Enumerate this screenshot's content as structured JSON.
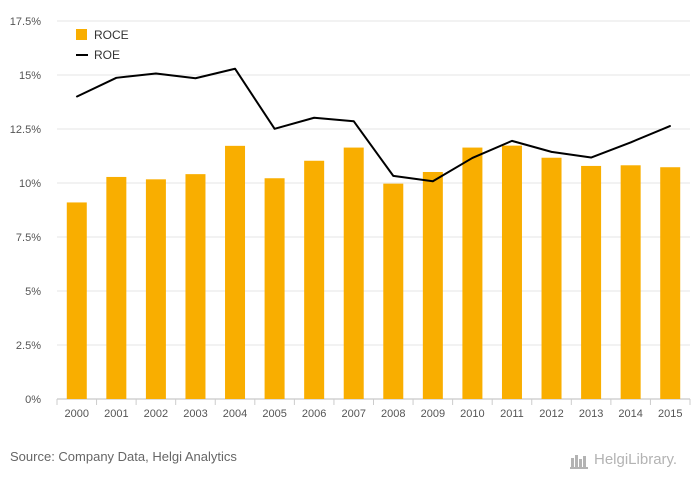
{
  "chart_data": {
    "type": "bar",
    "categories": [
      "2000",
      "2001",
      "2002",
      "2003",
      "2004",
      "2005",
      "2006",
      "2007",
      "2008",
      "2009",
      "2010",
      "2011",
      "2012",
      "2013",
      "2014",
      "2015"
    ],
    "series": [
      {
        "name": "ROCE",
        "type": "bar",
        "values": [
          9.1,
          10.28,
          10.17,
          10.41,
          11.72,
          10.22,
          11.03,
          11.64,
          9.97,
          10.51,
          11.64,
          11.73,
          11.17,
          10.79,
          10.82,
          10.73
        ]
      },
      {
        "name": "ROE",
        "type": "line",
        "values": [
          14.0,
          14.87,
          15.07,
          14.85,
          15.29,
          12.51,
          13.02,
          12.86,
          10.33,
          10.08,
          11.16,
          11.95,
          11.44,
          11.18,
          11.88,
          12.64
        ]
      }
    ],
    "yticks": [
      "0%",
      "2.5%",
      "5%",
      "7.5%",
      "10%",
      "12.5%",
      "15%",
      "17.5%"
    ],
    "ylim": [
      0,
      17.5
    ],
    "legend_position": "top-left",
    "colors": {
      "bar": "#f9ae00",
      "line": "#000000",
      "grid": "#e6e6e6"
    }
  },
  "footer": {
    "source": "Source: Company Data, Helgi Analytics",
    "brand": "HelgiLibrary."
  }
}
